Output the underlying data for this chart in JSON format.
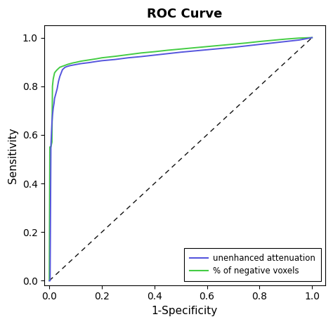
{
  "title": "ROC Curve",
  "xlabel": "1-Specificity",
  "ylabel": "Sensitivity",
  "xlim": [
    -0.02,
    1.05
  ],
  "ylim": [
    -0.02,
    1.05
  ],
  "xticks": [
    0.0,
    0.2,
    0.4,
    0.6,
    0.8,
    1.0
  ],
  "yticks": [
    0.0,
    0.2,
    0.4,
    0.6,
    0.8,
    1.0
  ],
  "curve1_color": "#5555dd",
  "curve2_color": "#44cc44",
  "diagonal_color": "#111111",
  "plot_bg_color": "#ffffff",
  "fig_bg_color": "#ffffff",
  "legend_labels": [
    "unenhanced attenuation",
    "% of negative voxels"
  ],
  "title_fontsize": 13,
  "axis_label_fontsize": 11,
  "tick_fontsize": 10,
  "blue_fpr": [
    0.0,
    0.003,
    0.006,
    0.008,
    0.01,
    0.012,
    0.015,
    0.018,
    0.02,
    0.025,
    0.03,
    0.035,
    0.04,
    0.05,
    0.06,
    0.07,
    0.08,
    0.09,
    0.1,
    0.12,
    0.15,
    0.18,
    0.2,
    0.25,
    0.3,
    0.35,
    0.4,
    0.45,
    0.5,
    0.55,
    0.6,
    0.65,
    0.7,
    0.75,
    0.8,
    0.85,
    0.9,
    0.95,
    1.0
  ],
  "blue_tpr": [
    0.0,
    0.0,
    0.55,
    0.6,
    0.65,
    0.68,
    0.71,
    0.73,
    0.75,
    0.77,
    0.79,
    0.82,
    0.84,
    0.868,
    0.878,
    0.882,
    0.885,
    0.887,
    0.889,
    0.893,
    0.897,
    0.902,
    0.905,
    0.91,
    0.917,
    0.922,
    0.928,
    0.934,
    0.94,
    0.945,
    0.95,
    0.955,
    0.96,
    0.966,
    0.972,
    0.978,
    0.984,
    0.99,
    1.0
  ],
  "green_fpr": [
    0.0,
    0.002,
    0.004,
    0.006,
    0.008,
    0.01,
    0.012,
    0.015,
    0.018,
    0.02,
    0.025,
    0.03,
    0.035,
    0.04,
    0.05,
    0.06,
    0.07,
    0.08,
    0.09,
    0.1,
    0.12,
    0.15,
    0.18,
    0.2,
    0.25,
    0.3,
    0.35,
    0.4,
    0.45,
    0.5,
    0.55,
    0.6,
    0.65,
    0.7,
    0.75,
    0.8,
    0.85,
    0.9,
    0.95,
    1.0
  ],
  "green_tpr": [
    0.0,
    0.55,
    0.55,
    0.55,
    0.56,
    0.57,
    0.8,
    0.83,
    0.845,
    0.855,
    0.862,
    0.868,
    0.873,
    0.878,
    0.882,
    0.886,
    0.89,
    0.893,
    0.896,
    0.898,
    0.903,
    0.908,
    0.913,
    0.917,
    0.923,
    0.93,
    0.937,
    0.942,
    0.948,
    0.953,
    0.958,
    0.963,
    0.968,
    0.973,
    0.978,
    0.984,
    0.989,
    0.994,
    0.998,
    1.0
  ]
}
